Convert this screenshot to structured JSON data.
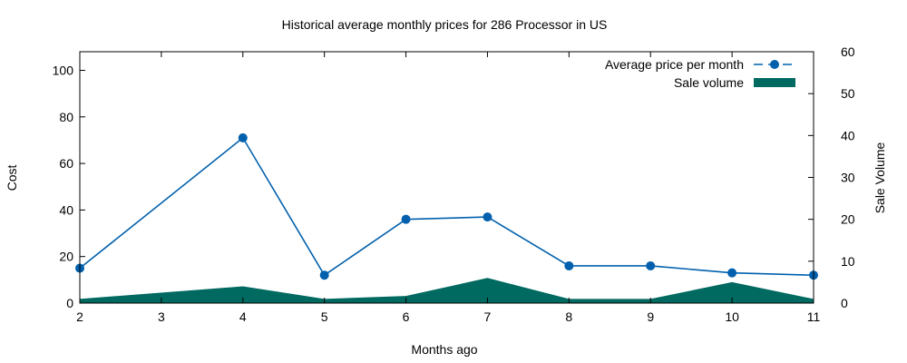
{
  "chart_data": {
    "type": "line",
    "title": "Historical average monthly prices for 286 Processor in US",
    "xlabel": "Months ago",
    "ylabel": "Cost",
    "y2label": "Sale Volume",
    "x": [
      2,
      4,
      5,
      6,
      7,
      8,
      9,
      10,
      11
    ],
    "xticks": [
      "2",
      "3",
      "4",
      "5",
      "6",
      "7",
      "8",
      "9",
      "10",
      "11"
    ],
    "xlim": [
      2,
      11
    ],
    "ylim": [
      0,
      108
    ],
    "yticks": [
      "0",
      "20",
      "40",
      "60",
      "80",
      "100"
    ],
    "y2lim": [
      0,
      60
    ],
    "y2ticks": [
      "0",
      "10",
      "20",
      "30",
      "40",
      "50",
      "60"
    ],
    "legend_position": "top-right",
    "series": [
      {
        "name": "Average price per month",
        "axis": "left",
        "style": "line-points-dashed",
        "color": "#0060ad",
        "values": [
          15,
          71,
          12,
          36,
          37,
          16,
          16,
          13,
          12
        ]
      },
      {
        "name": "Sale volume",
        "axis": "right",
        "style": "filled-area",
        "color": "#006960",
        "values": [
          1,
          4,
          1,
          1.7,
          6,
          1,
          1,
          5,
          1
        ]
      }
    ]
  }
}
